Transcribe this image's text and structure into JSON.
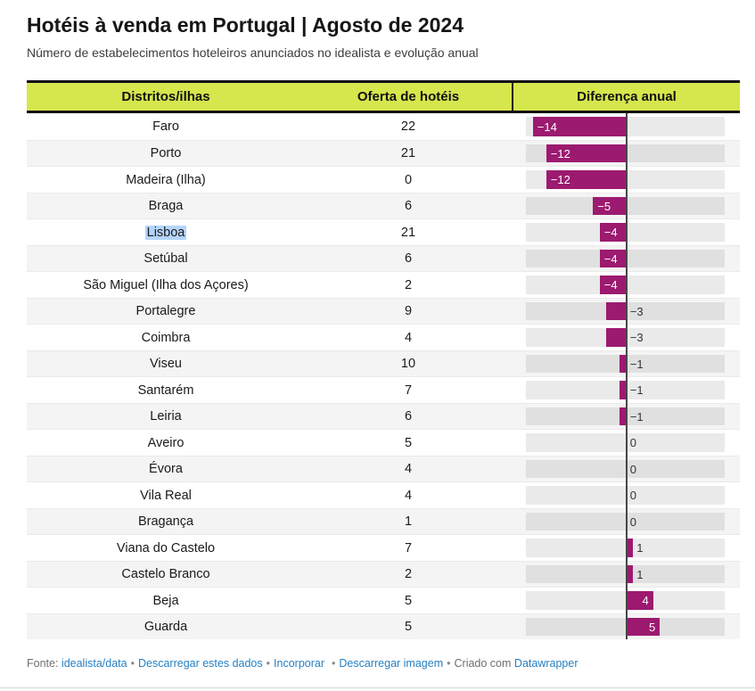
{
  "colors": {
    "bar": "#9c1a6f",
    "header-bg": "#d6e64d",
    "highlight": "#b4d5fb",
    "link": "#2680c2"
  },
  "header": {
    "title": "Hotéis à venda em Portugal | Agosto de 2024",
    "subtitle": "Número de estabelecimentos hoteleiros anunciados no idealista e evolução anual"
  },
  "table": {
    "columns": [
      "Distritos/ilhas",
      "Oferta de hotéis",
      "Diferença anual"
    ],
    "rows": [
      {
        "district": "Faro",
        "offer": "22",
        "diff": -14,
        "diff_label": "−14",
        "highlighted": false
      },
      {
        "district": "Porto",
        "offer": "21",
        "diff": -12,
        "diff_label": "−12",
        "highlighted": false
      },
      {
        "district": "Madeira (Ilha)",
        "offer": "0",
        "diff": -12,
        "diff_label": "−12",
        "highlighted": false
      },
      {
        "district": "Braga",
        "offer": "6",
        "diff": -5,
        "diff_label": "−5",
        "highlighted": false
      },
      {
        "district": "Lisboa",
        "offer": "21",
        "diff": -4,
        "diff_label": "−4",
        "highlighted": true
      },
      {
        "district": "Setúbal",
        "offer": "6",
        "diff": -4,
        "diff_label": "−4",
        "highlighted": false
      },
      {
        "district": "São Miguel (Ilha dos Açores)",
        "offer": "2",
        "diff": -4,
        "diff_label": "−4",
        "highlighted": false
      },
      {
        "district": "Portalegre",
        "offer": "9",
        "diff": -3,
        "diff_label": "−3",
        "highlighted": false
      },
      {
        "district": "Coimbra",
        "offer": "4",
        "diff": -3,
        "diff_label": "−3",
        "highlighted": false
      },
      {
        "district": "Viseu",
        "offer": "10",
        "diff": -1,
        "diff_label": "−1",
        "highlighted": false
      },
      {
        "district": "Santarém",
        "offer": "7",
        "diff": -1,
        "diff_label": "−1",
        "highlighted": false
      },
      {
        "district": "Leiria",
        "offer": "6",
        "diff": -1,
        "diff_label": "−1",
        "highlighted": false
      },
      {
        "district": "Aveiro",
        "offer": "5",
        "diff": 0,
        "diff_label": "0",
        "highlighted": false
      },
      {
        "district": "Évora",
        "offer": "4",
        "diff": 0,
        "diff_label": "0",
        "highlighted": false
      },
      {
        "district": "Vila Real",
        "offer": "4",
        "diff": 0,
        "diff_label": "0",
        "highlighted": false
      },
      {
        "district": "Bragança",
        "offer": "1",
        "diff": 0,
        "diff_label": "0",
        "highlighted": false
      },
      {
        "district": "Viana do Castelo",
        "offer": "7",
        "diff": 1,
        "diff_label": "1",
        "highlighted": false
      },
      {
        "district": "Castelo Branco",
        "offer": "2",
        "diff": 1,
        "diff_label": "1",
        "highlighted": false
      },
      {
        "district": "Beja",
        "offer": "5",
        "diff": 4,
        "diff_label": "4",
        "highlighted": false
      },
      {
        "district": "Guarda",
        "offer": "5",
        "diff": 5,
        "diff_label": "5",
        "highlighted": false
      }
    ]
  },
  "footer": {
    "source_label": "Fonte:",
    "source_link": "idealista/data",
    "separator": "•",
    "links": [
      "Descarregar estes dados",
      "Incorporar",
      "Descarregar imagem"
    ],
    "credit_text": "Criado com",
    "credit_link": "Datawrapper"
  },
  "chart_data": {
    "type": "table",
    "title": "Hotéis à venda em Portugal | Agosto de 2024",
    "subtitle": "Número de estabelecimentos hoteleiros anunciados no idealista e evolução anual",
    "columns": [
      "Distritos/ilhas",
      "Oferta de hotéis",
      "Diferença anual"
    ],
    "bar_column": "Diferença anual",
    "bar_type": "diverging-bar",
    "bar_axis_range": [
      -15,
      15
    ],
    "bar_color": "#9c1a6f",
    "rows": [
      [
        "Faro",
        22,
        -14
      ],
      [
        "Porto",
        21,
        -12
      ],
      [
        "Madeira (Ilha)",
        0,
        -12
      ],
      [
        "Braga",
        6,
        -5
      ],
      [
        "Lisboa",
        21,
        -4
      ],
      [
        "Setúbal",
        6,
        -4
      ],
      [
        "São Miguel (Ilha dos Açores)",
        2,
        -4
      ],
      [
        "Portalegre",
        9,
        -3
      ],
      [
        "Coimbra",
        4,
        -3
      ],
      [
        "Viseu",
        10,
        -1
      ],
      [
        "Santarém",
        7,
        -1
      ],
      [
        "Leiria",
        6,
        -1
      ],
      [
        "Aveiro",
        5,
        0
      ],
      [
        "Évora",
        4,
        0
      ],
      [
        "Vila Real",
        4,
        0
      ],
      [
        "Bragança",
        1,
        0
      ],
      [
        "Viana do Castelo",
        7,
        1
      ],
      [
        "Castelo Branco",
        2,
        1
      ],
      [
        "Beja",
        5,
        4
      ],
      [
        "Guarda",
        5,
        5
      ]
    ]
  }
}
